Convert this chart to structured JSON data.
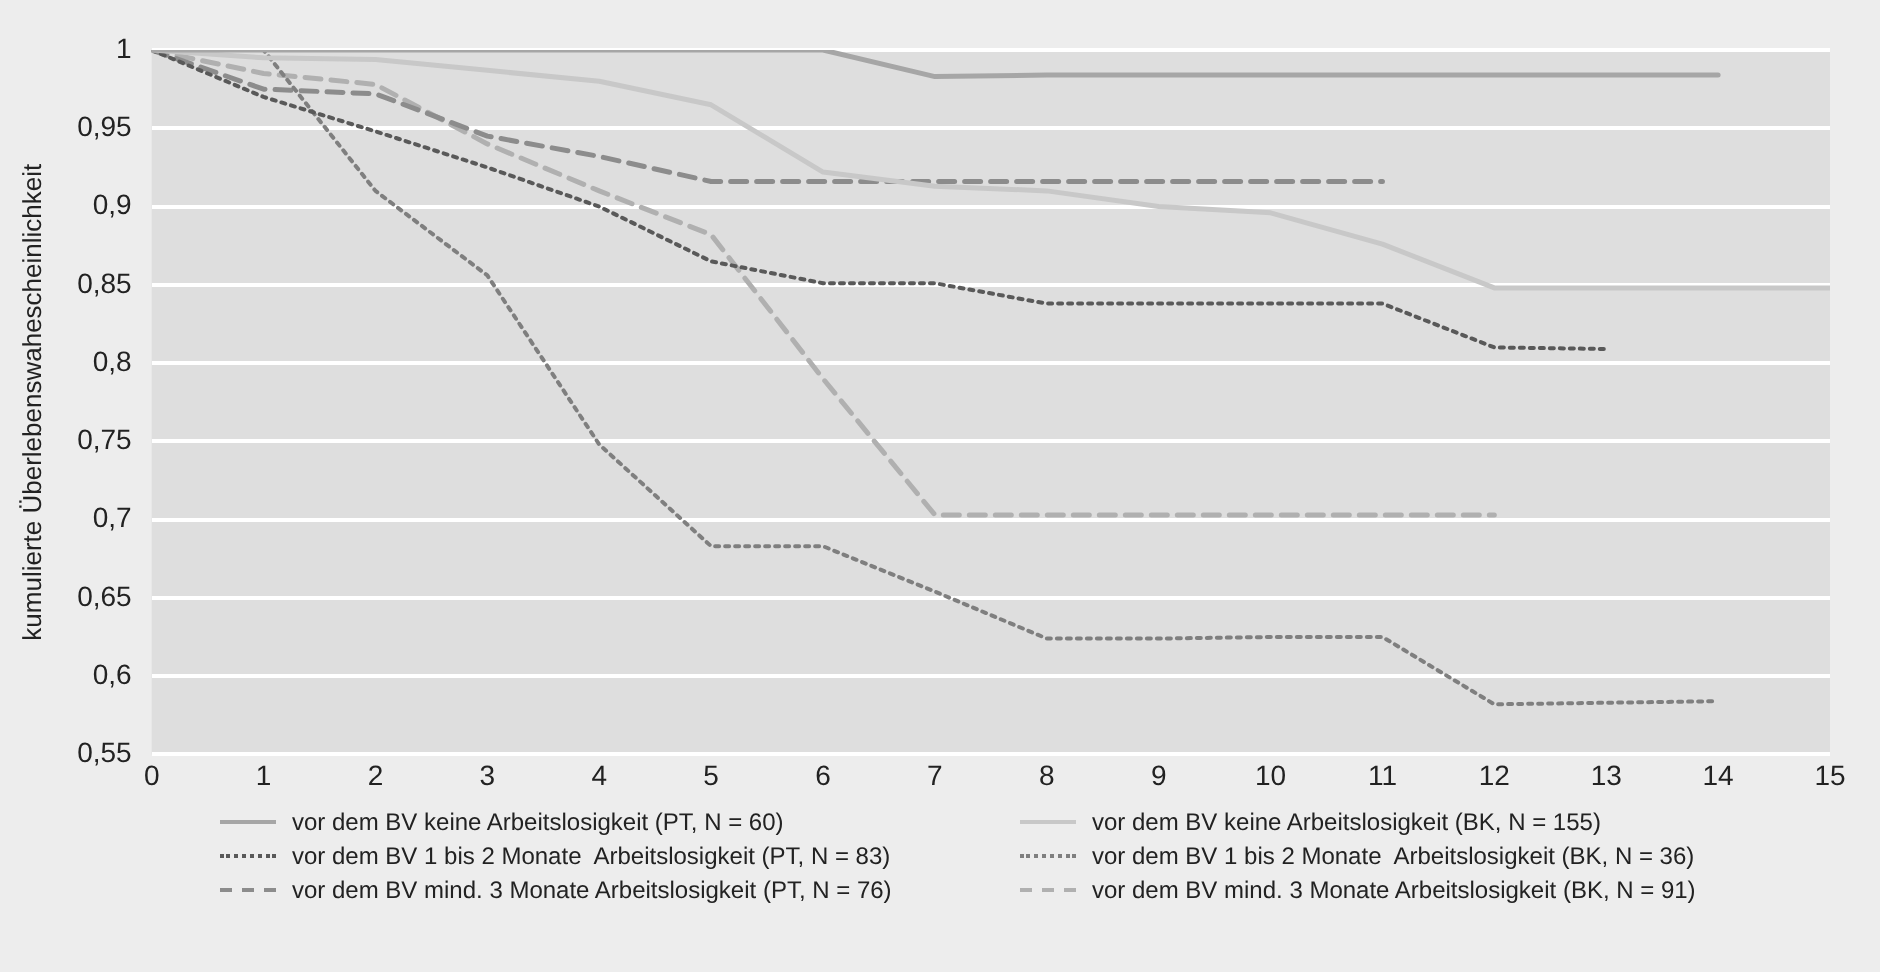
{
  "chart_data": {
    "type": "line",
    "ylabel": "kumulierte Überlebenswahescheinlichkeit",
    "x": [
      0,
      1,
      2,
      3,
      4,
      5,
      6,
      7,
      8,
      9,
      10,
      11,
      12,
      13,
      14,
      15
    ],
    "xlim": [
      0,
      15
    ],
    "xticks": [
      0,
      1,
      2,
      3,
      4,
      5,
      6,
      7,
      8,
      9,
      10,
      11,
      12,
      13,
      14,
      15
    ],
    "ylim": [
      0.55,
      1
    ],
    "yticks": [
      {
        "value": 0.55,
        "label": "0,55"
      },
      {
        "value": 0.6,
        "label": "0,6"
      },
      {
        "value": 0.65,
        "label": "0,65"
      },
      {
        "value": 0.7,
        "label": "0,7"
      },
      {
        "value": 0.75,
        "label": "0,75"
      },
      {
        "value": 0.8,
        "label": "0,8"
      },
      {
        "value": 0.85,
        "label": "0,85"
      },
      {
        "value": 0.9,
        "label": "0,9"
      },
      {
        "value": 0.95,
        "label": "0,95"
      },
      {
        "value": 1,
        "label": "1"
      }
    ],
    "grid": "y",
    "legend": "bottom",
    "marker": "none",
    "series": [
      {
        "name": "vor dem BV keine Arbeitslosigkeit (PT, N = 60)",
        "color": "#a6a6a6",
        "line_style": "solid",
        "values": [
          1,
          1,
          1,
          1,
          1,
          1,
          1,
          0.983,
          0.984,
          0.984,
          0.984,
          0.984,
          0.984,
          0.984,
          0.984,
          null
        ]
      },
      {
        "name": "vor dem BV keine Arbeitslosigkeit (BK, N = 155)",
        "color": "#c8c8c8",
        "line_style": "solid",
        "values": [
          1,
          0.995,
          0.994,
          0.987,
          0.98,
          0.965,
          0.922,
          0.913,
          0.91,
          0.9,
          0.896,
          0.876,
          0.848,
          0.848,
          0.848,
          0.848
        ]
      },
      {
        "name": "vor dem BV 1 bis 2 Monate  Arbeitslosigkeit (PT, N = 83)",
        "color": "#595959",
        "line_style": "dotted",
        "values": [
          1,
          0.97,
          0.948,
          0.925,
          0.9,
          0.865,
          0.851,
          0.851,
          0.838,
          0.838,
          0.838,
          0.838,
          0.81,
          0.809,
          null,
          null
        ]
      },
      {
        "name": "vor dem BV 1 bis 2 Monate  Arbeitslosigkeit (BK, N = 36)",
        "color": "#7f7f7f",
        "line_style": "dotted",
        "values": [
          1,
          1,
          0.91,
          0.856,
          0.748,
          0.683,
          0.683,
          0.654,
          0.624,
          0.624,
          0.625,
          0.625,
          0.582,
          0.583,
          0.584,
          null
        ]
      },
      {
        "name": "vor dem BV mind. 3 Monate Arbeitslosigkeit (PT, N = 76)",
        "color": "#8c8c8c",
        "line_style": "dashed",
        "values": [
          1,
          0.975,
          0.972,
          0.945,
          0.932,
          0.916,
          0.916,
          0.916,
          0.916,
          0.916,
          0.916,
          0.916,
          null,
          null,
          null,
          null
        ]
      },
      {
        "name": "vor dem BV mind. 3 Monate Arbeitslosigkeit (BK, N = 91)",
        "color": "#b0b0b0",
        "line_style": "dashed",
        "values": [
          1,
          0.985,
          0.978,
          0.94,
          0.91,
          0.882,
          0.79,
          0.703,
          0.703,
          0.703,
          0.703,
          0.703,
          0.703,
          null,
          null,
          null
        ]
      }
    ]
  }
}
